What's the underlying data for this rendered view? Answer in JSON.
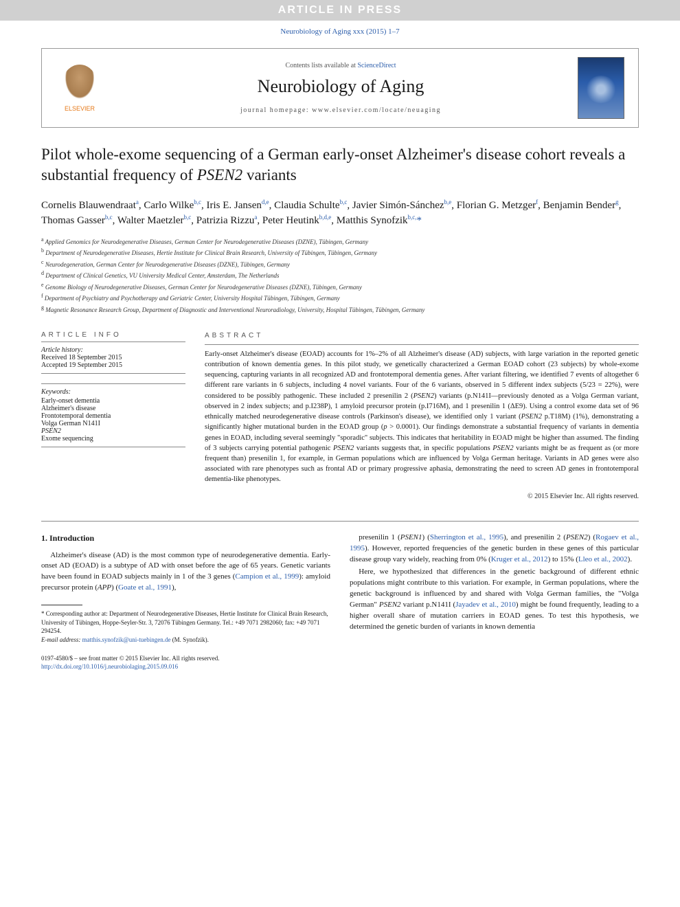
{
  "banner": "ARTICLE IN PRESS",
  "citation": "Neurobiology of Aging xxx (2015) 1–7",
  "header": {
    "contents_prefix": "Contents lists available at ",
    "contents_link": "ScienceDirect",
    "journal": "Neurobiology of Aging",
    "homepage_label": "journal homepage: ",
    "homepage_url": "www.elsevier.com/locate/neuaging",
    "publisher": "ELSEVIER"
  },
  "title_pre": "Pilot whole-exome sequencing of a German early-onset Alzheimer's disease cohort reveals a substantial frequency of ",
  "title_em": "PSEN2",
  "title_post": " variants",
  "authors_html": "Cornelis Blauwendraat<sup>a</sup>, Carlo Wilke<sup>b,c</sup>, Iris E. Jansen<sup>d,e</sup>, Claudia Schulte<sup>b,c</sup>, Javier Simón-Sánchez<sup>b,e</sup>, Florian G. Metzger<sup>f</sup>, Benjamin Bender<sup>g</sup>, Thomas Gasser<sup>b,c</sup>, Walter Maetzler<sup>b,c</sup>, Patrizia Rizzu<sup>a</sup>, Peter Heutink<sup>b,d,e</sup>, Matthis Synofzik<sup>b,c,</sup><span class='star'>*</span>",
  "affiliations": [
    "<sup>a</sup> Applied Genomics for Neurodegenerative Diseases, German Center for Neurodegenerative Diseases (DZNE), Tübingen, Germany",
    "<sup>b</sup> Department of Neurodegenerative Diseases, Hertie Institute for Clinical Brain Research, University of Tübingen, Tübingen, Germany",
    "<sup>c</sup> Neurodegeneration, German Center for Neurodegenerative Diseases (DZNE), Tübingen, Germany",
    "<sup>d</sup> Department of Clinical Genetics, VU University Medical Center, Amsterdam, The Netherlands",
    "<sup>e</sup> Genome Biology of Neurodegenerative Diseases, German Center for Neurodegenerative Diseases (DZNE), Tübingen, Germany",
    "<sup>f</sup> Department of Psychiatry and Psychotherapy and Geriatric Center, University Hospital Tübingen, Tübingen, Germany",
    "<sup>g</sup> Magnetic Resonance Research Group, Department of Diagnostic and Interventional Neuroradiology, University, Hospital Tübingen, Tübingen, Germany"
  ],
  "article_info": {
    "head": "ARTICLE INFO",
    "history_label": "Article history:",
    "received": "Received 18 September 2015",
    "accepted": "Accepted 19 September 2015",
    "keywords_label": "Keywords:",
    "keywords": [
      "Early-onset dementia",
      "Alzheimer's disease",
      "Frontotemporal dementia",
      "Volga German N141I",
      "PSEN2",
      "Exome sequencing"
    ]
  },
  "abstract": {
    "head": "ABSTRACT",
    "body": "Early-onset Alzheimer's disease (EOAD) accounts for 1%–2% of all Alzheimer's disease (AD) subjects, with large variation in the reported genetic contribution of known dementia genes. In this pilot study, we genetically characterized a German EOAD cohort (23 subjects) by whole-exome sequencing, capturing variants in all recognized AD and frontotemporal dementia genes. After variant filtering, we identified 7 events of altogether 6 different rare variants in 6 subjects, including 4 novel variants. Four of the 6 variants, observed in 5 different index subjects (5/23 = 22%), were considered to be possibly pathogenic. These included 2 presenilin 2 (<em>PSEN2</em>) variants (p.N141I—previously denoted as a Volga German variant, observed in 2 index subjects; and p.I238P), 1 amyloid precursor protein (p.I716M), and 1 presenilin 1 (ΔE9). Using a control exome data set of 96 ethnically matched neurodegenerative disease controls (Parkinson's disease), we identified only 1 variant (<em>PSEN2</em> p.T18M) (1%), demonstrating a significantly higher mutational burden in the EOAD group (<em>p</em> > 0.0001). Our findings demonstrate a substantial frequency of variants in dementia genes in EOAD, including several seemingly \"sporadic\" subjects. This indicates that heritability in EOAD might be higher than assumed. The finding of 3 subjects carrying potential pathogenic <em>PSEN2</em> variants suggests that, in specific populations <em>PSEN2</em> variants might be as frequent as (or more frequent than) presenilin 1, for example, in German populations which are influenced by Volga German heritage. Variants in AD genes were also associated with rare phenotypes such as frontal AD or primary progressive aphasia, demonstrating the need to screen AD genes in frontotemporal dementia-like phenotypes.",
    "copyright": "© 2015 Elsevier Inc. All rights reserved."
  },
  "intro": {
    "heading": "1. Introduction",
    "col1_p1": "Alzheimer's disease (AD) is the most common type of neurodegenerative dementia. Early-onset AD (EOAD) is a subtype of AD with onset before the age of 65 years. Genetic variants have been found in EOAD subjects mainly in 1 of the 3 genes (<a href='#'>Campion et al., 1999</a>): amyloid precursor protein (<em>APP</em>) (<a href='#'>Goate et al., 1991</a>),",
    "col2_p1": "presenilin 1 (<em>PSEN1</em>) (<a href='#'>Sherrington et al., 1995</a>), and presenilin 2 (<em>PSEN2</em>) (<a href='#'>Rogaev et al., 1995</a>). However, reported frequencies of the genetic burden in these genes of this particular disease group vary widely, reaching from 0% (<a href='#'>Kruger et al., 2012</a>) to 15% (<a href='#'>Lleo et al., 2002</a>).",
    "col2_p2": "Here, we hypothesized that differences in the genetic background of different ethnic populations might contribute to this variation. For example, in German populations, where the genetic background is influenced by and shared with Volga German families, the \"Volga German\" <em>PSEN2</em> variant p.N141I (<a href='#'>Jayadev et al., 2010</a>) might be found frequently, leading to a higher overall share of mutation carriers in EOAD genes. To test this hypothesis, we determined the genetic burden of variants in known dementia"
  },
  "corresponding": {
    "text": "* Corresponding author at: Department of Neurodegenerative Diseases, Hertie Institute for Clinical Brain Research, University of Tübingen, Hoppe-Seyler-Str. 3, 72076 Tübingen Germany. Tel.: +49 7071 2982060; fax: +49 7071 294254.",
    "email_label": "E-mail address: ",
    "email": "matthis.synofzik@uni-tuebingen.de",
    "email_suffix": " (M. Synofzik)."
  },
  "footer": {
    "line1": "0197-4580/$ – see front matter © 2015 Elsevier Inc. All rights reserved.",
    "doi": "http://dx.doi.org/10.1016/j.neurobiolaging.2015.09.016"
  },
  "colors": {
    "link": "#2a5caa",
    "banner_bg": "#d0d0d0",
    "banner_fg": "#ffffff",
    "rule": "#888888"
  }
}
